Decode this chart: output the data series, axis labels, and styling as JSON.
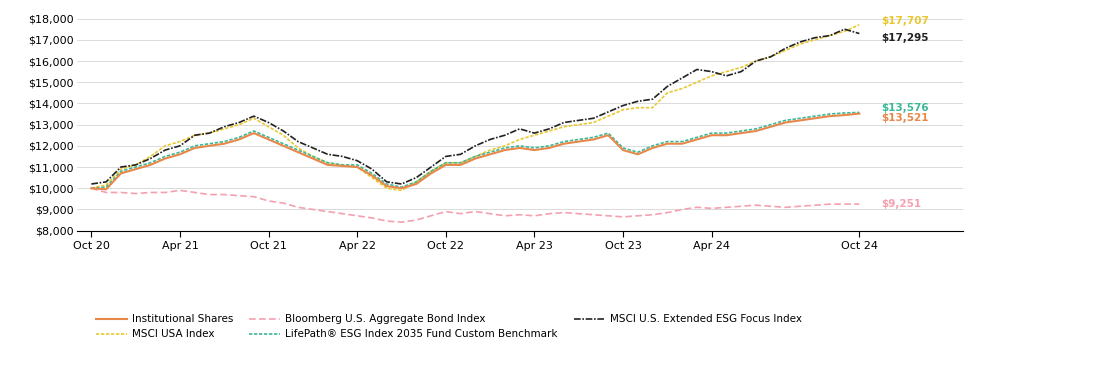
{
  "x_tick_labels": [
    "Oct 20",
    "Apr 21",
    "Oct 21",
    "Apr 22",
    "Oct 22",
    "Apr 23",
    "Oct 23",
    "Apr 24",
    "Oct 24"
  ],
  "ylim": [
    8000,
    18000
  ],
  "yticks": [
    8000,
    9000,
    10000,
    11000,
    12000,
    13000,
    14000,
    15000,
    16000,
    17000,
    18000
  ],
  "end_labels": {
    "msci_usa": "$17,707",
    "msci_esg": "$17,295",
    "lifepath": "$13,576",
    "institutional": "$13,521",
    "bloomberg": "$9,251"
  },
  "colors": {
    "institutional": "#E8874A",
    "msci_usa": "#E8C830",
    "bloomberg": "#F4A0B0",
    "lifepath": "#3CB898",
    "msci_esg": "#222222"
  },
  "legend_labels": {
    "institutional": "Institutional Shares",
    "msci_usa": "MSCI USA Index",
    "bloomberg": "Bloomberg U.S. Aggregate Bond Index",
    "lifepath": "LifePath® ESG Index 2035 Fund Custom Benchmark",
    "msci_esg": "MSCI U.S. Extended ESG Focus Index"
  },
  "msci_usa": [
    10000,
    10150,
    10900,
    11100,
    11500,
    12000,
    12200,
    12500,
    12600,
    12800,
    13000,
    13300,
    12900,
    12500,
    11900,
    11500,
    11200,
    11100,
    11000,
    10500,
    10000,
    9900,
    10300,
    10800,
    11200,
    11200,
    11500,
    11800,
    12000,
    12300,
    12500,
    12700,
    12900,
    13000,
    13100,
    13400,
    13700,
    13800,
    13800,
    14500,
    14700,
    15000,
    15300,
    15500,
    15700,
    16000,
    16200,
    16500,
    16800,
    17000,
    17200,
    17400,
    17707
  ],
  "msci_esg": [
    10200,
    10300,
    11000,
    11100,
    11400,
    11800,
    12000,
    12500,
    12600,
    12900,
    13100,
    13400,
    13100,
    12700,
    12200,
    11900,
    11600,
    11500,
    11300,
    10900,
    10300,
    10200,
    10500,
    11000,
    11500,
    11600,
    12000,
    12300,
    12500,
    12800,
    12600,
    12800,
    13100,
    13200,
    13300,
    13600,
    13900,
    14100,
    14200,
    14800,
    15200,
    15600,
    15500,
    15300,
    15500,
    16000,
    16200,
    16600,
    16900,
    17100,
    17200,
    17500,
    17295
  ],
  "bloomberg": [
    10000,
    9800,
    9800,
    9750,
    9800,
    9800,
    9900,
    9800,
    9700,
    9700,
    9650,
    9600,
    9400,
    9300,
    9100,
    9000,
    8900,
    8800,
    8700,
    8600,
    8450,
    8400,
    8500,
    8700,
    8900,
    8800,
    8900,
    8800,
    8700,
    8750,
    8700,
    8800,
    8850,
    8800,
    8750,
    8700,
    8650,
    8700,
    8750,
    8850,
    9000,
    9100,
    9050,
    9100,
    9150,
    9200,
    9150,
    9100,
    9150,
    9200,
    9250,
    9250,
    9251
  ],
  "lifepath": [
    10000,
    10050,
    10800,
    11000,
    11200,
    11500,
    11700,
    12000,
    12100,
    12200,
    12400,
    12700,
    12400,
    12100,
    11800,
    11500,
    11200,
    11100,
    11100,
    10700,
    10200,
    10050,
    10300,
    10800,
    11200,
    11200,
    11500,
    11700,
    11900,
    12000,
    11900,
    12000,
    12200,
    12300,
    12400,
    12600,
    11900,
    11700,
    12000,
    12200,
    12200,
    12400,
    12600,
    12600,
    12700,
    12800,
    13000,
    13200,
    13300,
    13400,
    13500,
    13550,
    13576
  ],
  "institutional": [
    10000,
    9950,
    10700,
    10900,
    11100,
    11400,
    11600,
    11900,
    12000,
    12100,
    12300,
    12600,
    12300,
    12000,
    11700,
    11400,
    11100,
    11050,
    11000,
    10600,
    10100,
    10000,
    10200,
    10700,
    11100,
    11100,
    11400,
    11600,
    11800,
    11900,
    11800,
    11900,
    12100,
    12200,
    12300,
    12500,
    11800,
    11600,
    11900,
    12100,
    12100,
    12300,
    12500,
    12500,
    12600,
    12700,
    12900,
    13100,
    13200,
    13300,
    13400,
    13450,
    13521
  ]
}
